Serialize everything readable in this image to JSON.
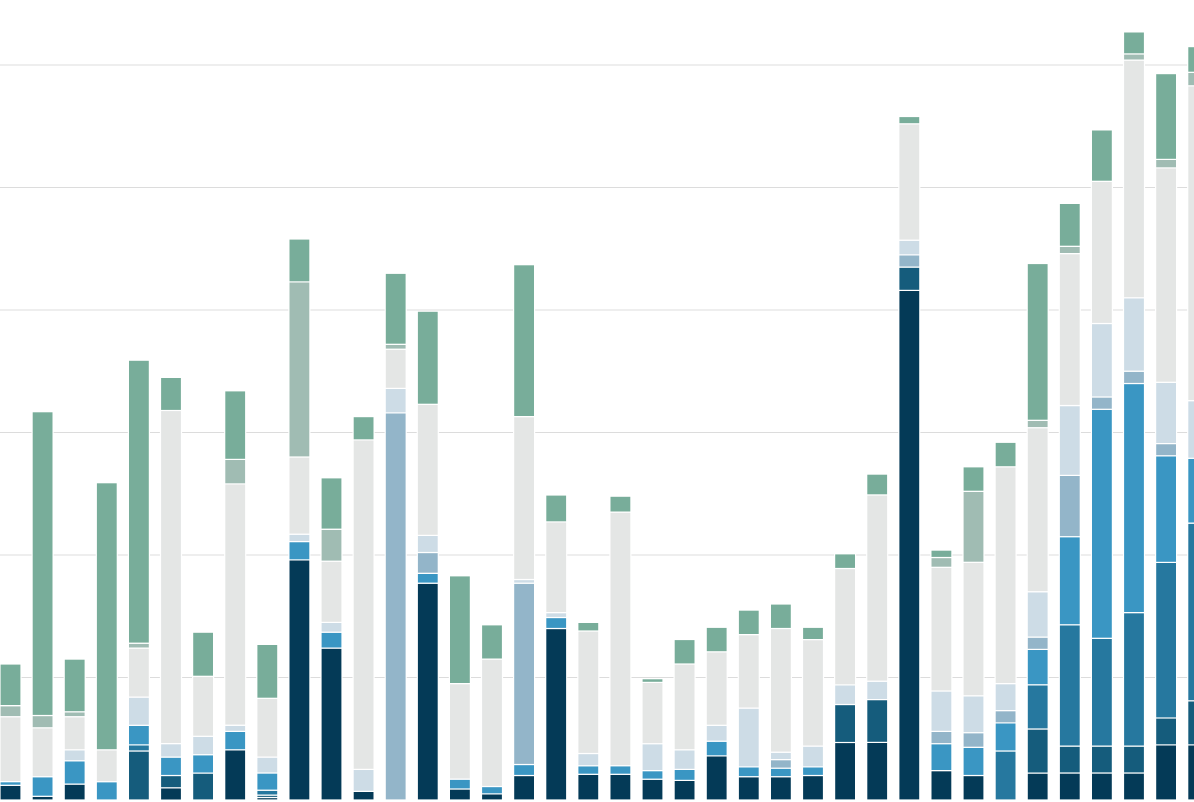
{
  "chart_data": {
    "type": "bar",
    "stacked": true,
    "title": "",
    "xlabel": "",
    "ylabel": "",
    "ylim": [
      0,
      6
    ],
    "grid": true,
    "gridlines_y": [
      1,
      2,
      3,
      4,
      5,
      6
    ],
    "legend": "none",
    "series_colors": [
      "#043a57",
      "#155c7c",
      "#26789f",
      "#3a96c3",
      "#93b5c9",
      "#cddce6",
      "#e4e6e5",
      "#a0bcb3",
      "#78ad9a"
    ],
    "bars": [
      [
        0.12,
        0,
        0,
        0.03,
        0,
        0,
        0.53,
        0.09,
        0.34
      ],
      [
        0.03,
        0,
        0,
        0.16,
        0,
        0,
        0.4,
        0.1,
        2.48
      ],
      [
        0.13,
        0,
        0,
        0.19,
        0,
        0.09,
        0.27,
        0.04,
        0.43
      ],
      [
        0,
        0,
        0,
        0.15,
        0,
        0,
        0.26,
        0,
        2.18
      ],
      [
        0,
        0.4,
        0.05,
        0.16,
        0,
        0.23,
        0.4,
        0.04,
        2.31
      ],
      [
        0.1,
        0.1,
        0,
        0.15,
        0,
        0.11,
        2.72,
        0,
        0.27
      ],
      [
        0,
        0.22,
        0,
        0.15,
        0,
        0.15,
        0.49,
        0,
        0.36
      ],
      [
        0.41,
        0,
        0,
        0.15,
        0,
        0.05,
        1.97,
        0.2,
        0.56
      ],
      [
        0.02,
        0.02,
        0.04,
        0.14,
        0,
        0.13,
        0.48,
        0,
        0.44
      ],
      [
        1.96,
        0,
        0,
        0.15,
        0,
        0.06,
        0.63,
        1.43,
        0.35
      ],
      [
        1.24,
        0,
        0,
        0.13,
        0,
        0.08,
        0.5,
        0.26,
        0.42
      ],
      [
        0.07,
        0,
        0,
        0,
        0,
        0.18,
        2.69,
        0,
        0.19
      ],
      [
        0,
        0,
        0,
        0,
        3.16,
        0.2,
        0.32,
        0.04,
        0.58
      ],
      [
        1.77,
        0,
        0,
        0.08,
        0.17,
        0.14,
        1.07,
        0,
        0.76
      ],
      [
        0.09,
        0,
        0,
        0.08,
        0,
        0,
        0.78,
        0,
        0.88
      ],
      [
        0.05,
        0,
        0,
        0.06,
        0,
        0,
        1.04,
        0,
        0.28
      ],
      [
        0.2,
        0,
        0,
        0.09,
        1.48,
        0.03,
        1.33,
        0,
        1.24
      ],
      [
        1.4,
        0,
        0,
        0.09,
        0,
        0.04,
        0.74,
        0,
        0.22
      ],
      [
        0.21,
        0,
        0,
        0.07,
        0,
        0.1,
        1,
        0,
        0.07
      ],
      [
        0.21,
        0,
        0,
        0.07,
        0,
        0,
        2.07,
        0,
        0.13
      ],
      [
        0.17,
        0,
        0,
        0.07,
        0,
        0.22,
        0.5,
        0,
        0.03
      ],
      [
        0.16,
        0,
        0,
        0.09,
        0,
        0.16,
        0.7,
        0,
        0.2
      ],
      [
        0.36,
        0,
        0,
        0.12,
        0,
        0.13,
        0.6,
        0,
        0.2
      ],
      [
        0.19,
        0,
        0,
        0.08,
        0,
        0.48,
        0.6,
        0,
        0.2
      ],
      [
        0.19,
        0,
        0,
        0.07,
        0.07,
        0.06,
        1.01,
        0,
        0.2
      ],
      [
        0.2,
        0,
        0,
        0.07,
        0,
        0.17,
        0.87,
        0,
        0.1
      ],
      [
        0.47,
        0.31,
        0,
        0,
        0,
        0.16,
        0.95,
        0,
        0.12
      ],
      [
        0.47,
        0.35,
        0,
        0,
        0,
        0.15,
        1.52,
        0,
        0.17
      ],
      [
        4.16,
        0.19,
        0,
        0,
        0.1,
        0.12,
        0.95,
        0,
        0.06
      ],
      [
        0.24,
        0,
        0,
        0.22,
        0.1,
        0.33,
        1.01,
        0.08,
        0.06
      ],
      [
        0.2,
        0,
        0,
        0.23,
        0.12,
        0.3,
        1.09,
        0.58,
        0.2
      ],
      [
        0,
        0,
        0.4,
        0.23,
        0.1,
        0.22,
        1.77,
        0,
        0.2
      ],
      [
        0.22,
        0.36,
        0.36,
        0.29,
        0.1,
        0.37,
        1.34,
        0.06,
        1.28
      ],
      [
        0.22,
        0.22,
        0.99,
        0.72,
        0.5,
        0.57,
        1.24,
        0.06,
        0.35
      ],
      [
        0.22,
        0.22,
        0.88,
        1.87,
        0.1,
        0.6,
        1.16,
        0,
        0.42
      ],
      [
        0.22,
        0.22,
        1.09,
        1.87,
        0.1,
        0.6,
        1.94,
        0.05,
        0.18
      ],
      [
        0.45,
        0.22,
        1.27,
        0.87,
        0.1,
        0.5,
        1.75,
        0.07,
        0.7
      ],
      [
        0.45,
        0.36,
        1.45,
        0.53,
        0,
        0.47,
        2.57,
        0.11,
        0.21
      ]
    ]
  }
}
